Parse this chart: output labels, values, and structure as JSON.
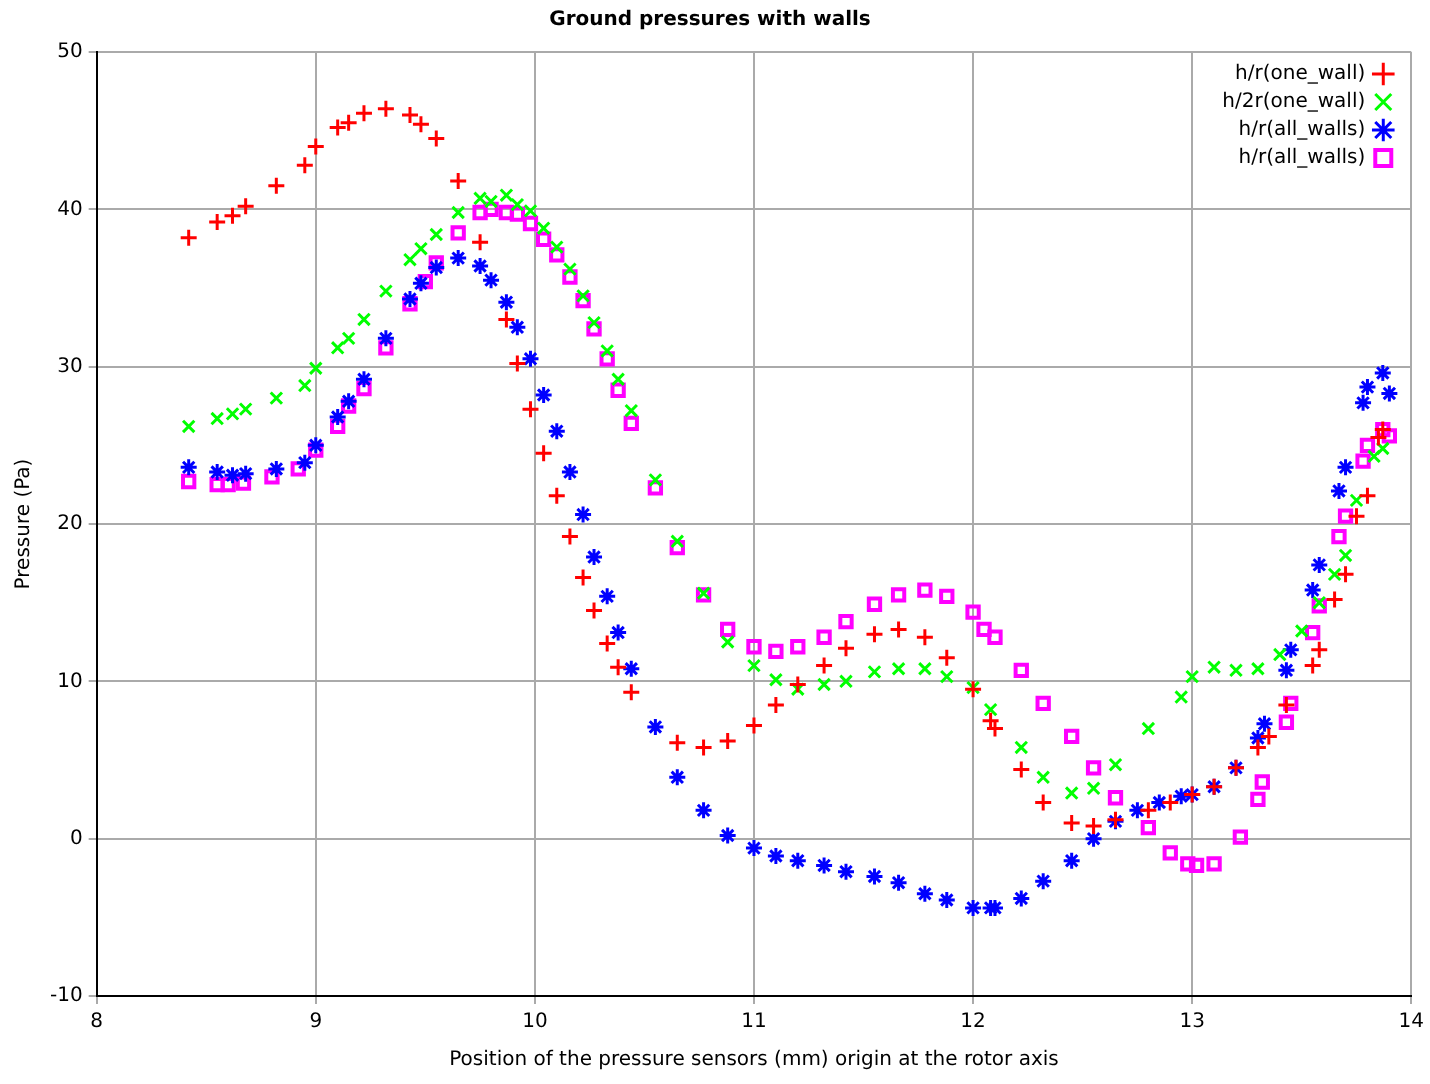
{
  "chart_data": {
    "type": "scatter",
    "title": "Ground pressures with walls",
    "xlabel": "Position of the pressure sensors (mm) origin at the rotor axis",
    "ylabel": "Pressure (Pa)",
    "xlim": [
      8,
      14
    ],
    "xticks": [
      8,
      9,
      10,
      11,
      12,
      13,
      14
    ],
    "ylim": [
      -10,
      50
    ],
    "yticks": [
      -10,
      0,
      10,
      20,
      30,
      40,
      50
    ],
    "grid": true,
    "legend": "top right",
    "series": [
      {
        "name": "h/r(one_wall)",
        "color": "#ff0000",
        "marker": "plus",
        "x": [
          8.42,
          8.55,
          8.62,
          8.68,
          8.82,
          8.95,
          9.0,
          9.1,
          9.15,
          9.22,
          9.32,
          9.43,
          9.48,
          9.55,
          9.65,
          9.75,
          9.87,
          9.92,
          9.98,
          10.04,
          10.1,
          10.16,
          10.22,
          10.27,
          10.33,
          10.38,
          10.44,
          10.65,
          10.77,
          10.88,
          11.0,
          11.1,
          11.2,
          11.32,
          11.42,
          11.55,
          11.66,
          11.78,
          11.88,
          12.0,
          12.08,
          12.1,
          12.22,
          12.32,
          12.45,
          12.55,
          12.65,
          12.8,
          12.9,
          13.0,
          13.1,
          13.2,
          13.3,
          13.35,
          13.43,
          13.55,
          13.58,
          13.65,
          13.7,
          13.75,
          13.8,
          13.85,
          13.87
        ],
        "values": [
          38.2,
          39.2,
          39.6,
          40.2,
          41.5,
          42.8,
          44.0,
          45.2,
          45.5,
          46.1,
          46.4,
          46.0,
          45.4,
          44.5,
          41.8,
          37.9,
          33.0,
          30.2,
          27.3,
          24.5,
          21.8,
          19.2,
          16.6,
          14.5,
          12.4,
          10.9,
          9.3,
          6.1,
          5.8,
          6.2,
          7.2,
          8.5,
          9.8,
          11.0,
          12.1,
          13.0,
          13.3,
          12.8,
          11.5,
          9.5,
          7.5,
          7.0,
          4.4,
          2.3,
          1.0,
          0.8,
          1.2,
          1.8,
          2.3,
          2.8,
          3.3,
          4.5,
          5.8,
          6.5,
          8.5,
          11.0,
          12.0,
          15.2,
          16.8,
          20.5,
          21.8,
          25.5,
          26.0
        ]
      },
      {
        "name": "h/2r(one_wall)",
        "color": "#00ff00",
        "marker": "cross",
        "x": [
          8.42,
          8.55,
          8.62,
          8.68,
          8.82,
          8.95,
          9.0,
          9.1,
          9.15,
          9.22,
          9.32,
          9.43,
          9.48,
          9.55,
          9.65,
          9.75,
          9.8,
          9.87,
          9.92,
          9.98,
          10.04,
          10.1,
          10.16,
          10.22,
          10.27,
          10.33,
          10.38,
          10.44,
          10.55,
          10.65,
          10.77,
          10.88,
          11.0,
          11.1,
          11.2,
          11.32,
          11.42,
          11.55,
          11.66,
          11.78,
          11.88,
          12.0,
          12.08,
          12.22,
          12.32,
          12.45,
          12.55,
          12.65,
          12.8,
          12.95,
          13.0,
          13.1,
          13.2,
          13.3,
          13.4,
          13.5,
          13.58,
          13.65,
          13.7,
          13.75,
          13.83,
          13.87
        ],
        "values": [
          26.2,
          26.7,
          27.0,
          27.3,
          28.0,
          28.8,
          29.9,
          31.2,
          31.8,
          33.0,
          34.8,
          36.8,
          37.5,
          38.4,
          39.8,
          40.7,
          40.5,
          40.9,
          40.3,
          39.9,
          38.8,
          37.6,
          36.2,
          34.5,
          32.8,
          31.0,
          29.2,
          27.2,
          22.8,
          18.9,
          15.6,
          12.5,
          11.0,
          10.1,
          9.5,
          9.8,
          10.0,
          10.6,
          10.8,
          10.8,
          10.3,
          9.6,
          8.2,
          5.8,
          3.9,
          2.9,
          3.2,
          4.7,
          7.0,
          9.0,
          10.3,
          10.9,
          10.7,
          10.8,
          11.7,
          13.2,
          15.0,
          16.8,
          18.0,
          21.5,
          24.3,
          24.8
        ]
      },
      {
        "name": "h/r(all_walls)",
        "color": "#0000ff",
        "x": [
          8.42,
          8.55,
          8.62,
          8.68,
          8.82,
          8.95,
          9.0,
          9.1,
          9.15,
          9.22,
          9.32,
          9.43,
          9.48,
          9.55,
          9.65,
          9.75,
          9.8,
          9.87,
          9.92,
          9.98,
          10.04,
          10.1,
          10.16,
          10.22,
          10.27,
          10.33,
          10.38,
          10.44,
          10.55,
          10.65,
          10.77,
          10.88,
          11.0,
          11.1,
          11.2,
          11.32,
          11.42,
          11.55,
          11.66,
          11.78,
          11.88,
          12.0,
          12.08,
          12.1,
          12.22,
          12.32,
          12.45,
          12.55,
          12.65,
          12.75,
          12.85,
          12.95,
          13.0,
          13.1,
          13.2,
          13.3,
          13.33,
          13.43,
          13.45,
          13.55,
          13.58,
          13.67,
          13.7,
          13.78,
          13.8,
          13.87,
          13.9
        ],
        "values": [
          23.6,
          23.3,
          23.1,
          23.2,
          23.5,
          23.9,
          25.0,
          26.8,
          27.8,
          29.2,
          31.8,
          34.3,
          35.3,
          36.3,
          36.9,
          36.4,
          35.5,
          34.1,
          32.5,
          30.5,
          28.2,
          25.9,
          23.3,
          20.6,
          17.9,
          15.4,
          13.1,
          10.8,
          7.1,
          3.9,
          1.8,
          0.2,
          -0.6,
          -1.1,
          -1.4,
          -1.7,
          -2.1,
          -2.4,
          -2.8,
          -3.5,
          -3.9,
          -4.4,
          -4.4,
          -4.4,
          -3.8,
          -2.7,
          -1.4,
          0.0,
          1.1,
          1.8,
          2.3,
          2.7,
          2.8,
          3.3,
          4.5,
          6.4,
          7.3,
          10.7,
          12.0,
          15.8,
          17.4,
          22.1,
          23.6,
          27.7,
          28.7,
          29.6,
          28.3
        ]
      },
      {
        "name": "h/r(all_walls)",
        "color": "#ff00ff",
        "marker": "square",
        "x": [
          8.42,
          8.55,
          8.6,
          8.67,
          8.8,
          8.92,
          9.0,
          9.1,
          9.15,
          9.22,
          9.32,
          9.43,
          9.5,
          9.55,
          9.65,
          9.75,
          9.8,
          9.87,
          9.92,
          9.98,
          10.04,
          10.1,
          10.16,
          10.22,
          10.27,
          10.33,
          10.38,
          10.44,
          10.55,
          10.65,
          10.77,
          10.88,
          11.0,
          11.1,
          11.2,
          11.32,
          11.42,
          11.55,
          11.66,
          11.78,
          11.88,
          12.0,
          12.05,
          12.1,
          12.22,
          12.32,
          12.45,
          12.55,
          12.65,
          12.8,
          12.9,
          12.98,
          13.02,
          13.1,
          13.22,
          13.3,
          13.32,
          13.43,
          13.45,
          13.55,
          13.58,
          13.67,
          13.7,
          13.78,
          13.8,
          13.87,
          13.9
        ],
        "values": [
          22.7,
          22.5,
          22.5,
          22.6,
          23.0,
          23.5,
          24.7,
          26.2,
          27.5,
          28.6,
          31.2,
          34.0,
          35.4,
          36.6,
          38.5,
          39.8,
          40.0,
          39.8,
          39.7,
          39.1,
          38.1,
          37.1,
          35.7,
          34.2,
          32.4,
          30.5,
          28.5,
          26.4,
          22.3,
          18.5,
          15.5,
          13.3,
          12.2,
          11.9,
          12.2,
          12.8,
          13.8,
          14.9,
          15.5,
          15.8,
          15.4,
          14.4,
          13.3,
          12.8,
          10.7,
          8.6,
          6.5,
          4.5,
          2.6,
          0.7,
          -0.9,
          -1.6,
          -1.7,
          -1.6,
          0.1,
          2.5,
          3.6,
          7.4,
          8.6,
          13.1,
          14.8,
          19.2,
          20.5,
          24.0,
          25.0,
          26.0,
          25.6
        ]
      }
    ]
  }
}
